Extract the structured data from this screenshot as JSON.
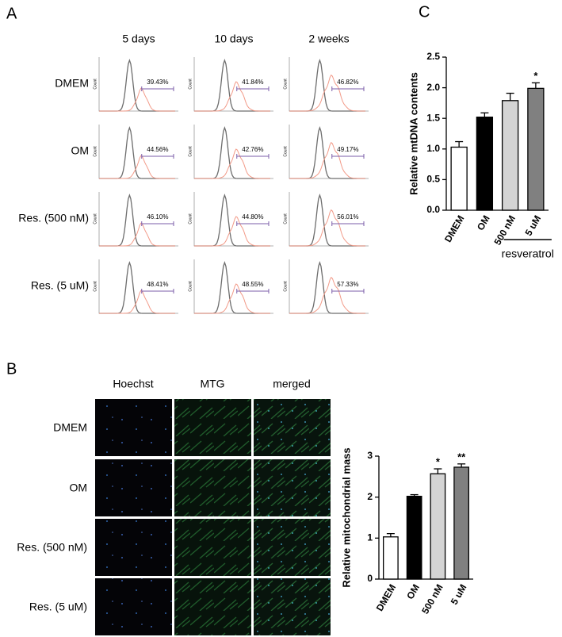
{
  "panel_labels": [
    "A",
    "B",
    "C"
  ],
  "panel_a": {
    "columns": [
      "5 days",
      "10 days",
      "2 weeks"
    ],
    "rows": [
      "DMEM",
      "OM",
      "Res. (500 nM)",
      "Res. (5 uM)"
    ],
    "axis_label": "Count",
    "cells": [
      [
        "39.43%",
        "41.84%",
        "46.82%"
      ],
      [
        "44.56%",
        "42.76%",
        "49.17%"
      ],
      [
        "46.10%",
        "44.80%",
        "56.01%"
      ],
      [
        "48.41%",
        "48.55%",
        "57.33%"
      ]
    ]
  },
  "panel_b": {
    "columns": [
      "Hoechst",
      "MTG",
      "merged"
    ],
    "rows": [
      "DMEM",
      "OM",
      "Res. (500 nM)",
      "Res. (5 uM)"
    ]
  },
  "chart_data": [
    {
      "type": "bar",
      "y_label": "Relative mtDNA contents",
      "categories": [
        "DMEM",
        "OM",
        "500 nM",
        "5 uM"
      ],
      "values": [
        1.03,
        1.52,
        1.79,
        1.99
      ],
      "errors": [
        0.09,
        0.07,
        0.12,
        0.09
      ],
      "colors": [
        "#ffffff",
        "#000000",
        "#d4d4d4",
        "#808080"
      ],
      "ylim": [
        0,
        2.5
      ],
      "yticks": [
        {
          "value": 0,
          "label": "0.0"
        },
        {
          "value": 0.5,
          "label": "0.5"
        },
        {
          "value": 1,
          "label": "1.0"
        },
        {
          "value": 1.5,
          "label": "1.5"
        },
        {
          "value": 2,
          "label": "2.0"
        },
        {
          "value": 2.5,
          "label": "2.5"
        }
      ],
      "annotations": [
        {
          "category": "5 uM",
          "text": "*"
        }
      ],
      "group_label": {
        "text": "resveratrol",
        "categories": [
          "500 nM",
          "5 uM"
        ]
      }
    },
    {
      "type": "bar",
      "y_label": "Relative mitochondrial mass",
      "categories": [
        "DMEM",
        "OM",
        "500 nM",
        "5 uM"
      ],
      "values": [
        1.03,
        2.02,
        2.57,
        2.73
      ],
      "errors": [
        0.08,
        0.04,
        0.12,
        0.08
      ],
      "colors": [
        "#ffffff",
        "#000000",
        "#d4d4d4",
        "#808080"
      ],
      "ylim": [
        0,
        3
      ],
      "yticks": [
        0,
        1,
        2,
        3
      ],
      "annotations": [
        {
          "category": "500 nM",
          "text": "*"
        },
        {
          "category": "5 uM",
          "text": "**"
        }
      ]
    }
  ]
}
